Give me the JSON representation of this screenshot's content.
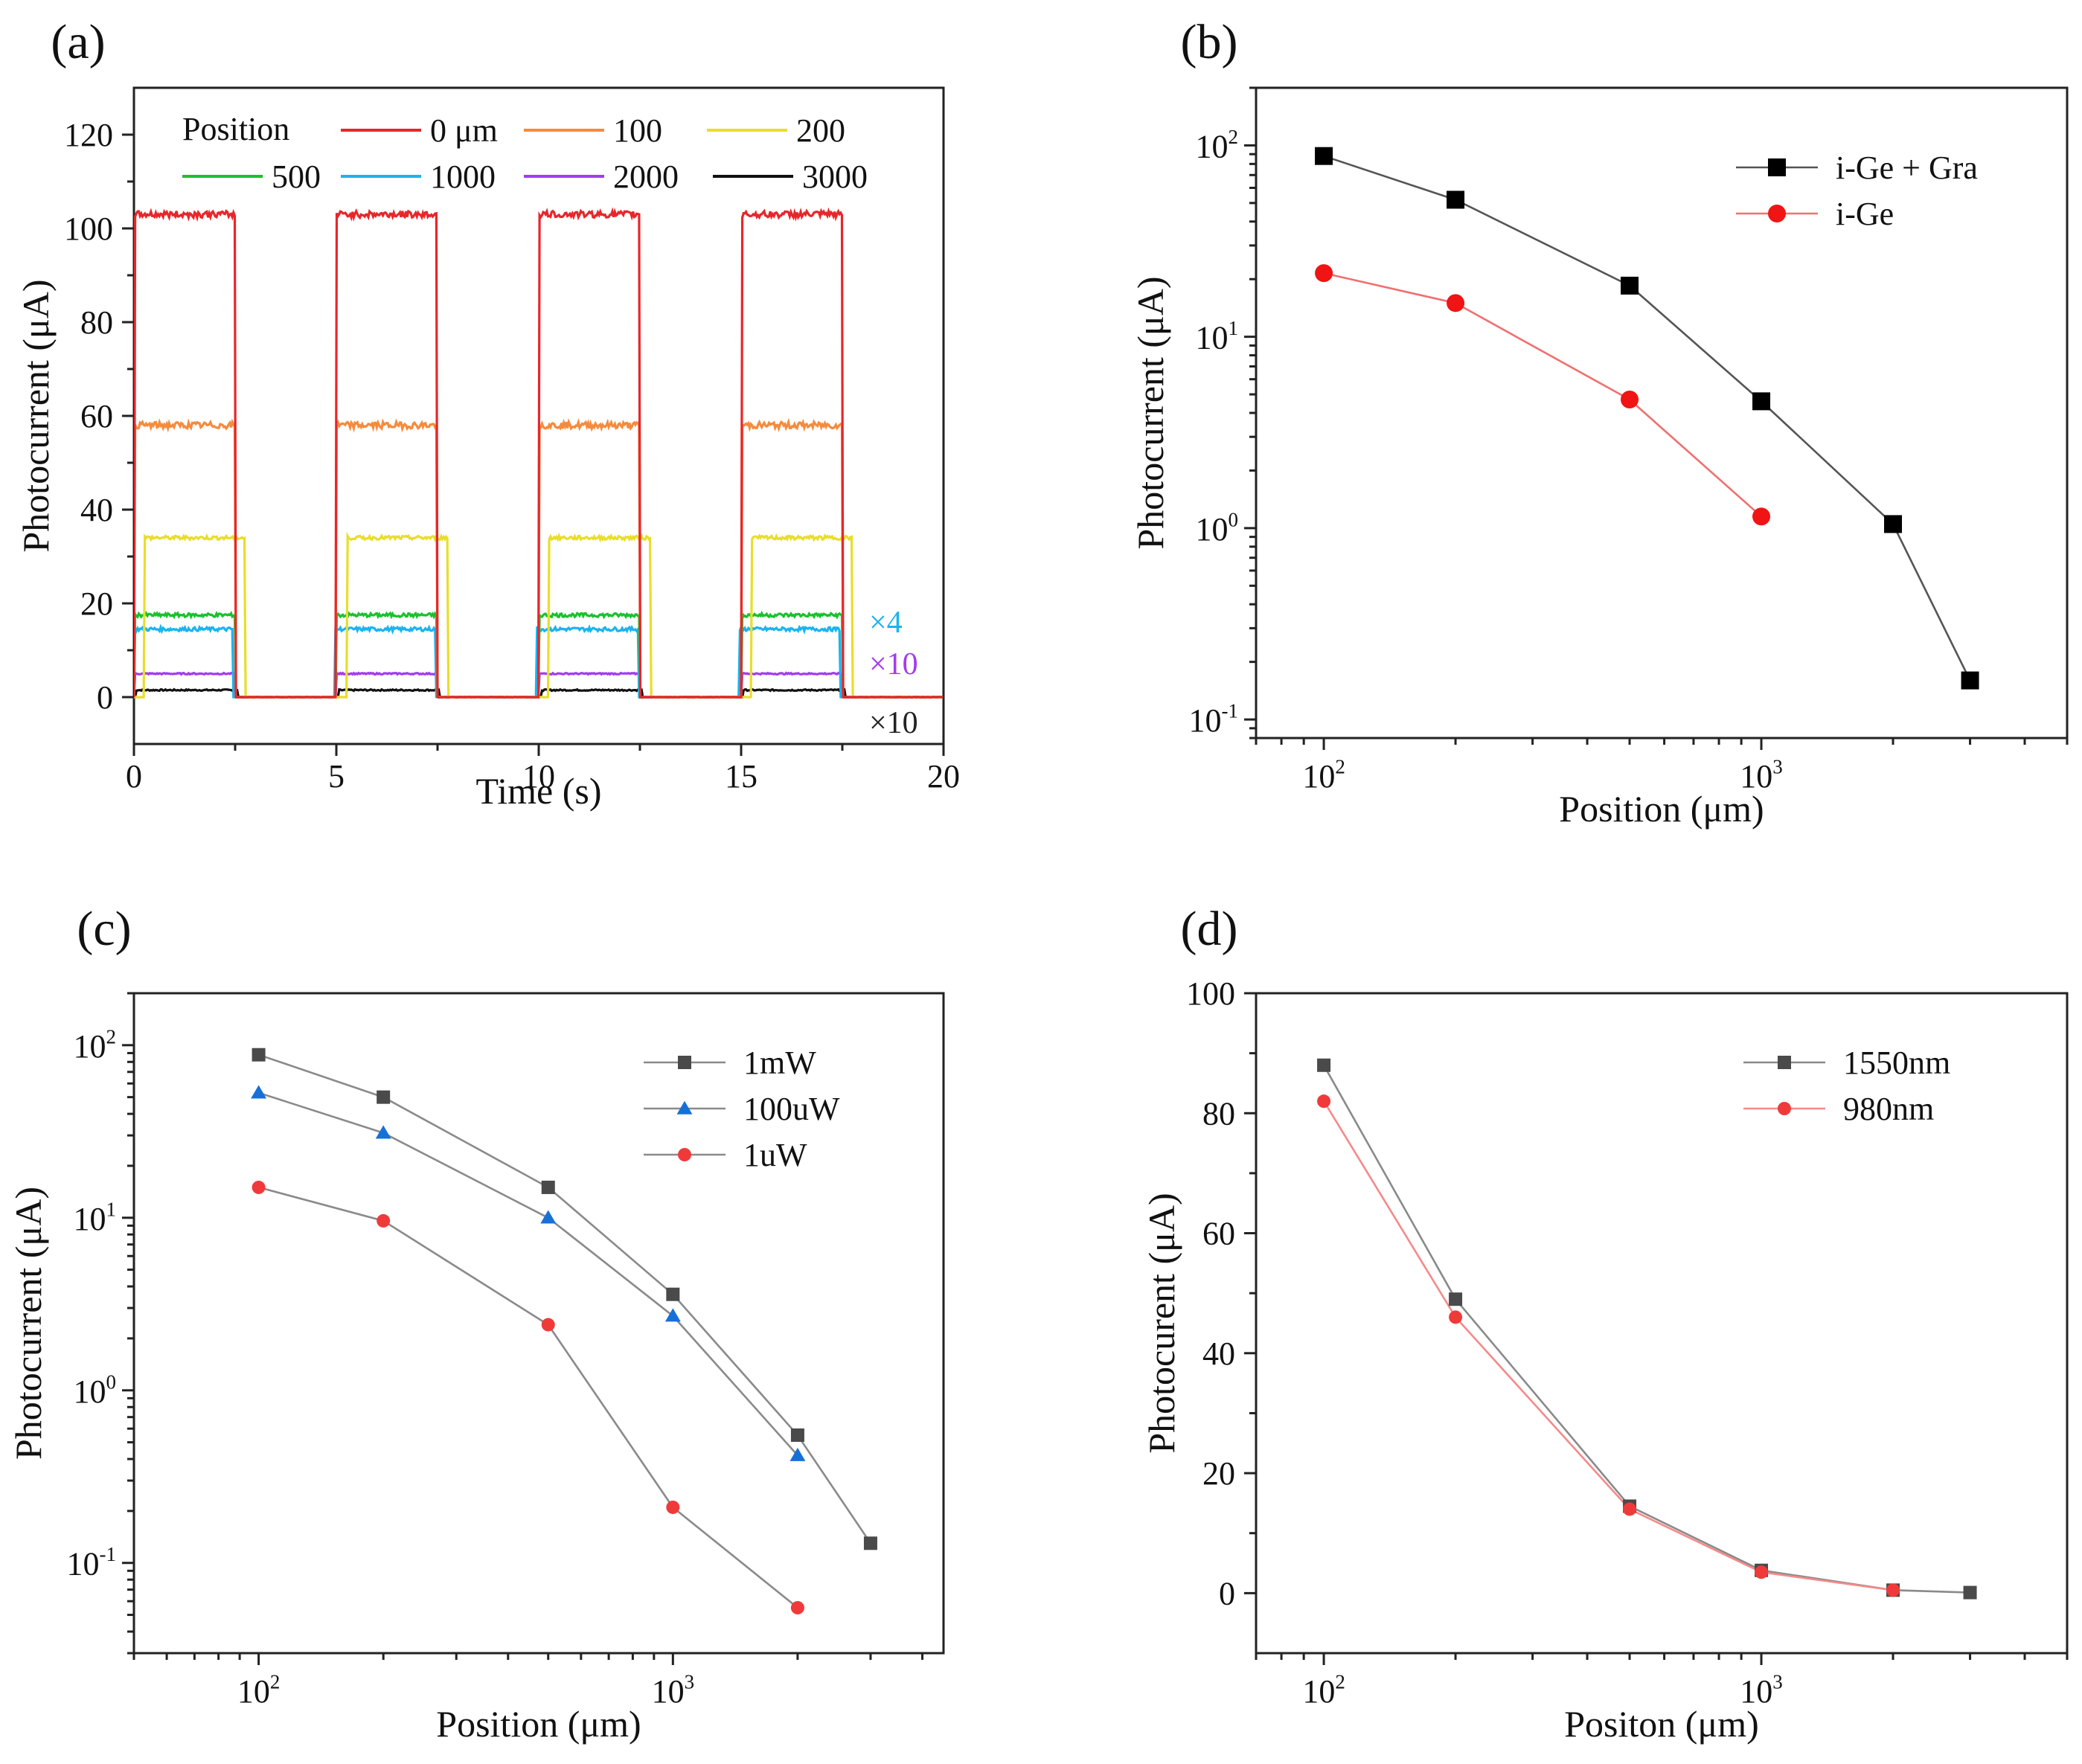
{
  "figure": {
    "panels": [
      {
        "label": "(a)"
      },
      {
        "label": "(b)"
      },
      {
        "label": "(c)"
      },
      {
        "label": "(d)"
      }
    ]
  },
  "chart_data": [
    {
      "id": "a",
      "type": "line",
      "panel_label": "(a)",
      "xlabel": "Time (s)",
      "ylabel": "Photocurrent (μA)",
      "xlim": [
        0,
        20
      ],
      "ylim": [
        -10,
        130
      ],
      "xticks": [
        0,
        5,
        10,
        15,
        20
      ],
      "yticks": [
        0,
        20,
        40,
        60,
        80,
        100,
        120
      ],
      "legend_title": "Position",
      "legend_position": "top",
      "pulses": [
        {
          "on": 0,
          "off": 2.5
        },
        {
          "on": 5,
          "off": 7.5
        },
        {
          "on": 10,
          "off": 12.5
        },
        {
          "on": 15,
          "off": 17.5
        }
      ],
      "series": [
        {
          "name": "0 μm",
          "color": "#e8262a",
          "level": 103,
          "pulse_shift": 0.0
        },
        {
          "name": "100",
          "color": "#f58b3c",
          "level": 58,
          "pulse_shift": 0.0
        },
        {
          "name": "200",
          "color": "#e8de2a",
          "level": 34,
          "pulse_shift": 0.25
        },
        {
          "name": "500",
          "color": "#18c22c",
          "level": 17.5,
          "pulse_shift": 0.0
        },
        {
          "name": "1000",
          "color": "#1ab4f0",
          "level": 14.5,
          "pulse_shift": -0.05
        },
        {
          "name": "2000",
          "color": "#a23cf0",
          "level": 5,
          "pulse_shift": 0.0
        },
        {
          "name": "3000",
          "color": "#111111",
          "level": 1.5,
          "pulse_shift": 0.05
        }
      ],
      "annotations": [
        {
          "text": "×4",
          "color": "#1ab4f0"
        },
        {
          "text": "×10",
          "color": "#a23cf0"
        },
        {
          "text": "×10",
          "color": "#222222"
        }
      ]
    },
    {
      "id": "b",
      "type": "line",
      "panel_label": "(b)",
      "xscale": "log",
      "yscale": "log",
      "xlabel": "Position (μm)",
      "ylabel": "Photocurrent (μA)",
      "xlim": [
        70,
        5000
      ],
      "ylim": [
        0.08,
        200
      ],
      "xticks": [
        {
          "value": 100,
          "base": "10",
          "exp": "2"
        },
        {
          "value": 1000,
          "base": "10",
          "exp": "3"
        }
      ],
      "yticks": [
        {
          "value": 0.1,
          "base": "10",
          "exp": "-1"
        },
        {
          "value": 1,
          "base": "10",
          "exp": "0"
        },
        {
          "value": 10,
          "base": "10",
          "exp": "1"
        },
        {
          "value": 100,
          "base": "10",
          "exp": "2"
        }
      ],
      "legend_position": "top-right",
      "series": [
        {
          "name": "i-Ge + Gra",
          "marker": "square",
          "color": "#000000",
          "line_color": "#555555",
          "x": [
            100,
            200,
            500,
            1000,
            2000,
            3000
          ],
          "y": [
            88,
            52,
            18.5,
            4.6,
            1.05,
            0.16
          ]
        },
        {
          "name": "i-Ge",
          "marker": "circle",
          "color": "#f01414",
          "line_color": "#f07070",
          "x": [
            100,
            200,
            500,
            1000
          ],
          "y": [
            21.5,
            15,
            4.7,
            1.15
          ]
        }
      ]
    },
    {
      "id": "c",
      "type": "line",
      "panel_label": "(c)",
      "xscale": "log",
      "yscale": "log",
      "xlabel": "Position (μm)",
      "ylabel": "Photocurrent (μA)",
      "xlim": [
        50,
        4500
      ],
      "ylim": [
        0.03,
        200
      ],
      "xticks": [
        {
          "value": 100,
          "base": "10",
          "exp": "2"
        },
        {
          "value": 1000,
          "base": "10",
          "exp": "3"
        }
      ],
      "yticks": [
        {
          "value": 0.1,
          "base": "10",
          "exp": "-1"
        },
        {
          "value": 1,
          "base": "10",
          "exp": "0"
        },
        {
          "value": 10,
          "base": "10",
          "exp": "1"
        },
        {
          "value": 100,
          "base": "10",
          "exp": "2"
        }
      ],
      "legend_position": "top-right",
      "series": [
        {
          "name": "1mW",
          "marker": "square",
          "color": "#4a4a4a",
          "line_color": "#8a8a8a",
          "x": [
            100,
            200,
            500,
            1000,
            2000,
            3000
          ],
          "y": [
            88,
            50,
            15,
            3.6,
            0.55,
            0.13
          ]
        },
        {
          "name": "100uW",
          "marker": "triangle",
          "color": "#1670d8",
          "line_color": "#8a8a8a",
          "x": [
            100,
            200,
            500,
            1000,
            2000
          ],
          "y": [
            53,
            31,
            10,
            2.7,
            0.42
          ]
        },
        {
          "name": "1uW",
          "marker": "circle",
          "color": "#f03a3a",
          "line_color": "#8a8a8a",
          "x": [
            100,
            200,
            500,
            1000,
            2000
          ],
          "y": [
            15,
            9.6,
            2.4,
            0.21,
            0.055
          ]
        }
      ]
    },
    {
      "id": "d",
      "type": "line",
      "panel_label": "(d)",
      "xscale": "log",
      "yscale": "linear",
      "xlabel": "Positon (μm)",
      "ylabel": "Photocurent (μA)",
      "xlim": [
        70,
        5000
      ],
      "ylim": [
        -10,
        100
      ],
      "xticks": [
        {
          "value": 100,
          "base": "10",
          "exp": "2"
        },
        {
          "value": 1000,
          "base": "10",
          "exp": "3"
        }
      ],
      "yticks": [
        0,
        20,
        40,
        60,
        80,
        100
      ],
      "legend_position": "top-right",
      "series": [
        {
          "name": "1550nm",
          "marker": "square",
          "color": "#4a4a4a",
          "line_color": "#8a8a8a",
          "x": [
            100,
            200,
            500,
            1000,
            2000,
            3000
          ],
          "y": [
            88,
            49,
            14.5,
            3.8,
            0.5,
            0.1
          ]
        },
        {
          "name": "980nm",
          "marker": "circle",
          "color": "#f03a3a",
          "line_color": "#f58a8a",
          "x": [
            100,
            200,
            500,
            1000,
            2000
          ],
          "y": [
            82,
            46,
            14,
            3.5,
            0.5
          ]
        }
      ]
    }
  ]
}
